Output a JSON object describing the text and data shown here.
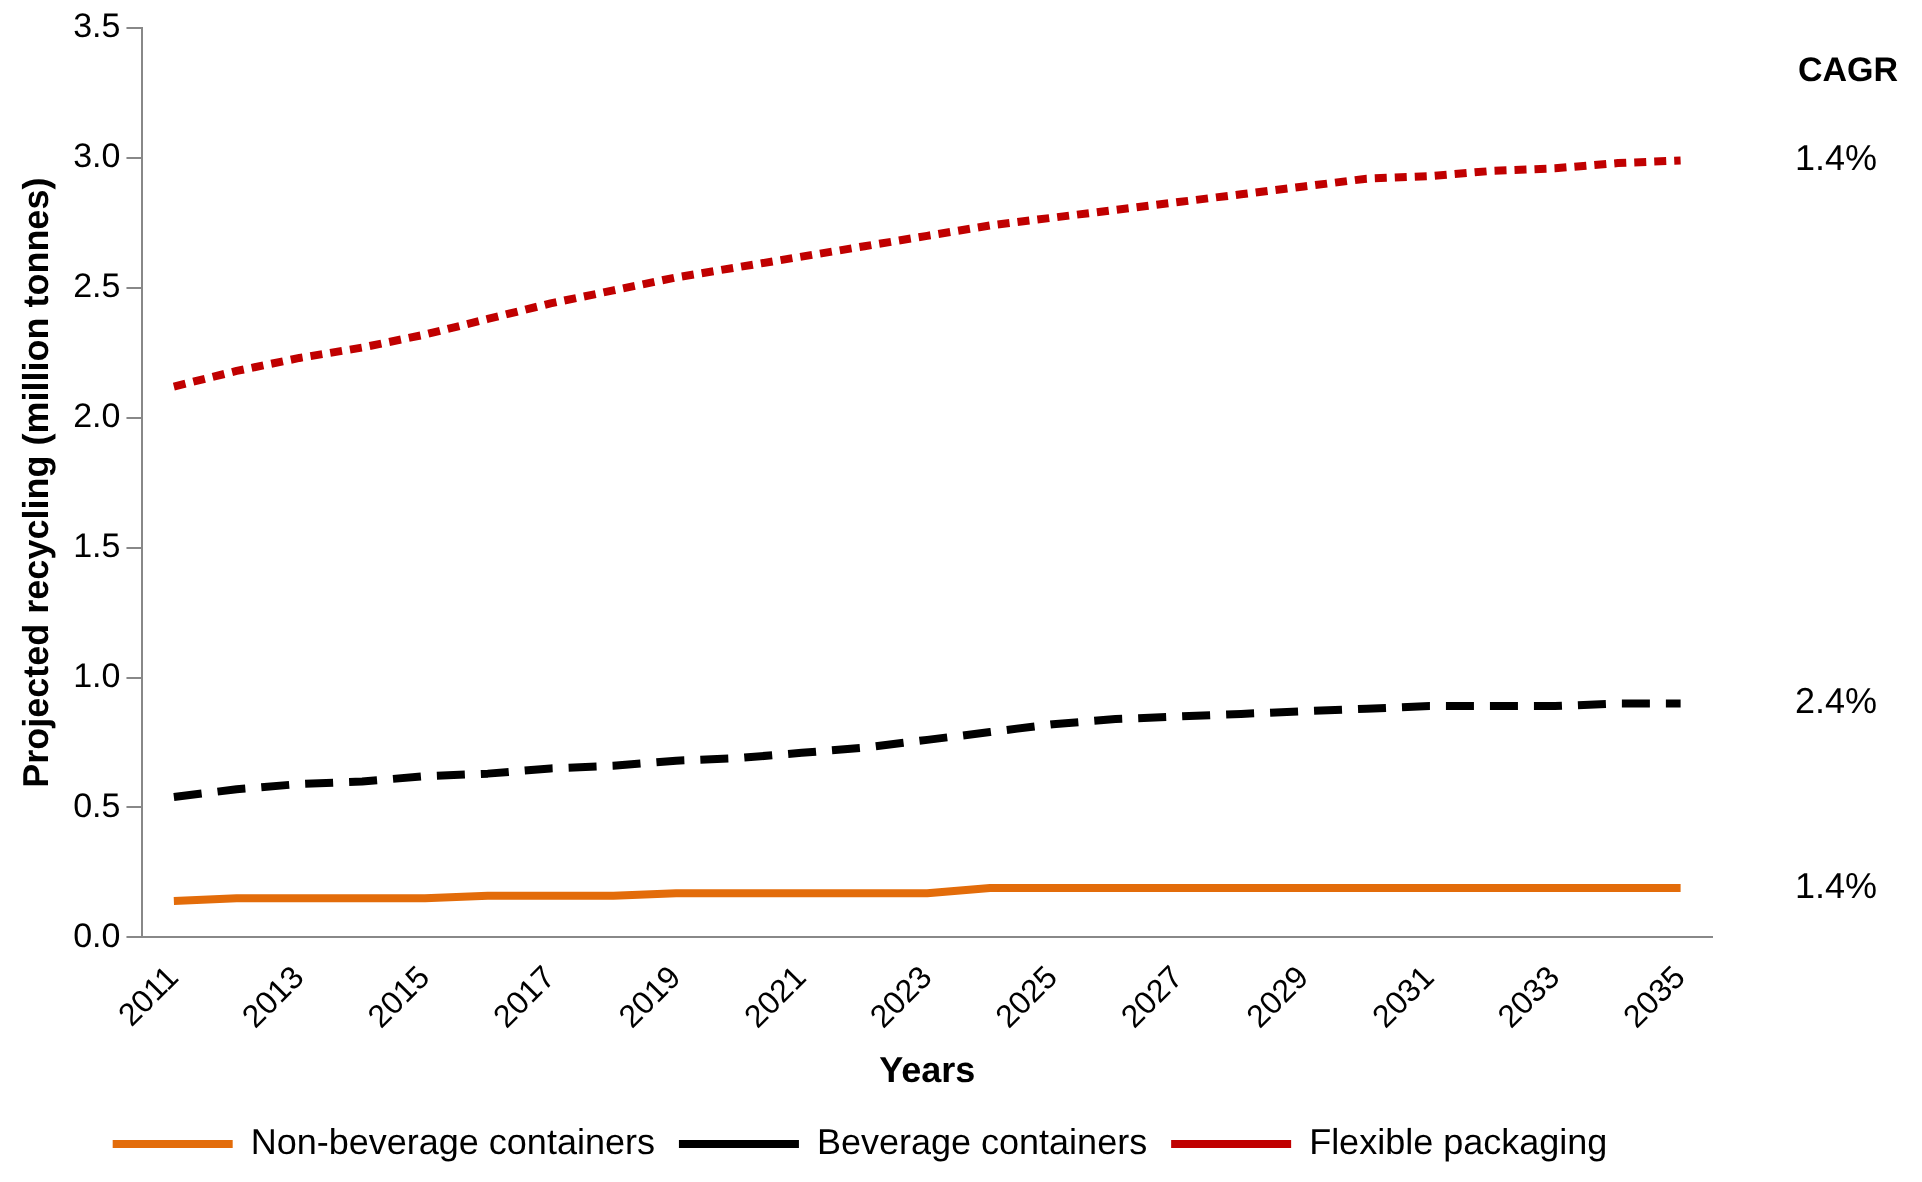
{
  "chart_data": {
    "type": "line",
    "xlabel": "Years",
    "ylabel": "Projected recycling (million tonnes)",
    "categories": [
      "2011",
      null,
      "2013",
      null,
      "2015",
      null,
      "2017",
      null,
      "2019",
      null,
      "2021",
      null,
      "2023",
      null,
      "2025",
      null,
      "2027",
      null,
      "2029",
      null,
      "2031",
      null,
      "2033",
      null,
      "2035"
    ],
    "series": [
      {
        "name": "Non-beverage containers",
        "color": "#e36c0a",
        "line_style": "solid",
        "values": [
          0.14,
          0.15,
          0.15,
          0.15,
          0.15,
          0.16,
          0.16,
          0.16,
          0.17,
          0.17,
          0.17,
          0.17,
          0.17,
          0.19,
          0.19,
          0.19,
          0.19,
          0.19,
          0.19,
          0.19,
          0.19,
          0.19,
          0.19,
          0.19,
          0.19
        ]
      },
      {
        "name": "Beverage containers",
        "color": "#000000",
        "line_style": "dashed",
        "values": [
          0.54,
          0.57,
          0.59,
          0.6,
          0.62,
          0.63,
          0.65,
          0.66,
          0.68,
          0.69,
          0.71,
          0.73,
          0.76,
          0.79,
          0.82,
          0.84,
          0.85,
          0.86,
          0.87,
          0.88,
          0.89,
          0.89,
          0.89,
          0.9,
          0.9
        ]
      },
      {
        "name": "Flexible packaging",
        "color": "#c00000",
        "line_style": "dotted",
        "values": [
          2.12,
          2.18,
          2.23,
          2.27,
          2.32,
          2.38,
          2.44,
          2.49,
          2.54,
          2.58,
          2.62,
          2.66,
          2.7,
          2.74,
          2.77,
          2.8,
          2.83,
          2.86,
          2.89,
          2.92,
          2.93,
          2.95,
          2.96,
          2.98,
          2.99
        ]
      }
    ],
    "ylim": [
      0,
      3.5
    ],
    "yticks": [
      {
        "value": 0,
        "label": "0.0"
      },
      {
        "value": 0.5,
        "label": "0.5"
      },
      {
        "value": 1,
        "label": "1.0"
      },
      {
        "value": 1.5,
        "label": "1.5"
      },
      {
        "value": 2,
        "label": "2.0"
      },
      {
        "value": 2.5,
        "label": "2.5"
      },
      {
        "value": 3,
        "label": "3.0"
      },
      {
        "value": 3.5,
        "label": "3.5"
      }
    ],
    "grid": false,
    "legend": "bottom",
    "marker": "none",
    "annotations": [
      "CAGR",
      "1.4%",
      "2.4%",
      "1.4%"
    ]
  }
}
